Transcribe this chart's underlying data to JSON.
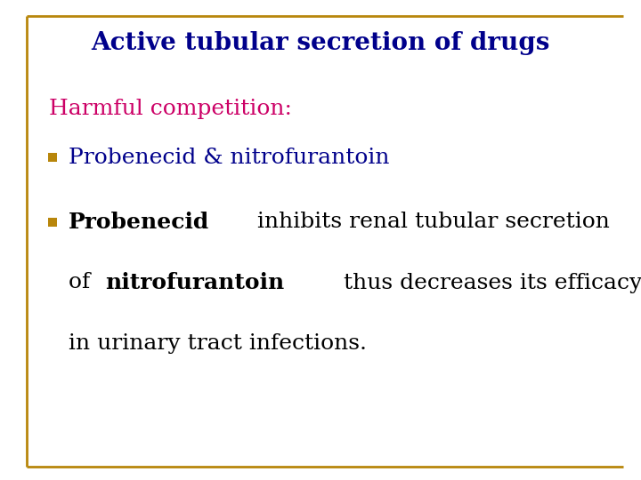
{
  "title": "Active tubular secretion of drugs",
  "title_color": "#00008B",
  "title_fontsize": 20,
  "background_color": "#FFFFFF",
  "border_color": "#B8860B",
  "harmful_label": "Harmful competition:",
  "harmful_color": "#CC0066",
  "harmful_fontsize": 18,
  "bullet_color": "#B8860B",
  "bullet1_text": "Probenecid & nitrofurantoin",
  "bullet1_color": "#00008B",
  "bullet1_fontsize": 18,
  "body_fontsize": 18,
  "bullet2_line3": "in urinary tract infections."
}
